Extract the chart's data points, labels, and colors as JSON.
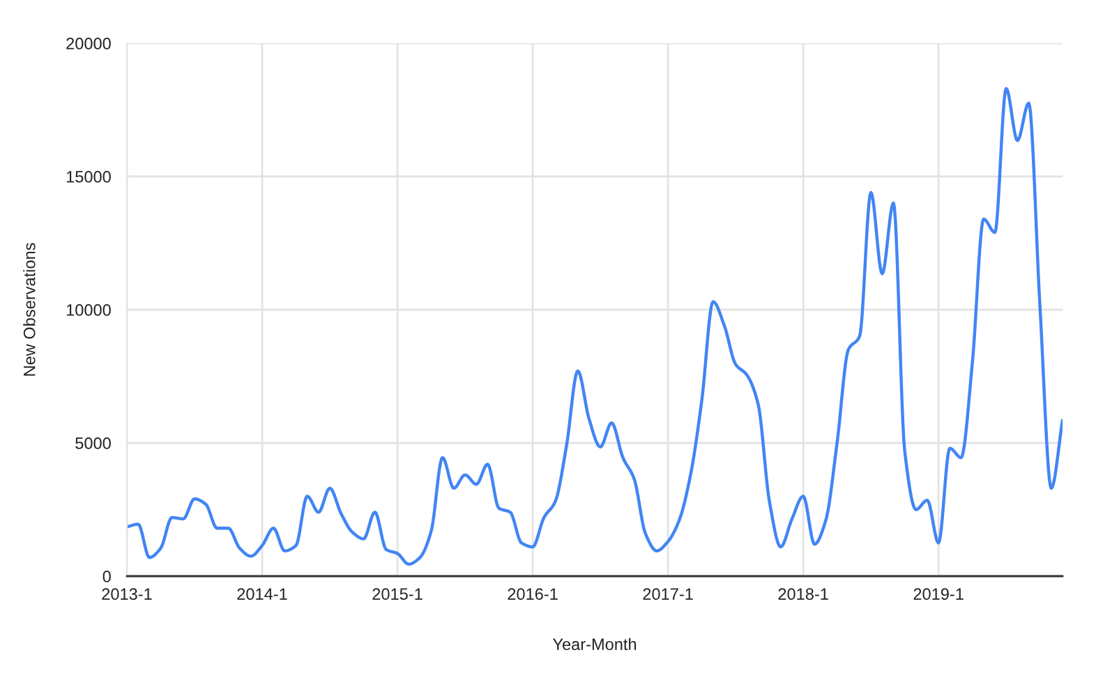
{
  "chart_data": {
    "type": "line",
    "xlabel": "Year-Month",
    "ylabel": "New Observations",
    "categories": [
      "2013-1",
      null,
      null,
      null,
      null,
      null,
      null,
      null,
      null,
      null,
      null,
      null,
      "2014-1",
      null,
      null,
      null,
      null,
      null,
      null,
      null,
      null,
      null,
      null,
      null,
      "2015-1",
      null,
      null,
      null,
      null,
      null,
      null,
      null,
      null,
      null,
      null,
      null,
      "2016-1",
      null,
      null,
      null,
      null,
      null,
      null,
      null,
      null,
      null,
      null,
      null,
      "2017-1",
      null,
      null,
      null,
      null,
      null,
      null,
      null,
      null,
      null,
      null,
      null,
      "2018-1",
      null,
      null,
      null,
      null,
      null,
      null,
      null,
      null,
      null,
      null,
      null,
      "2019-1",
      null,
      null,
      null,
      null,
      null,
      null,
      null,
      null,
      null,
      null,
      null
    ],
    "series": [
      {
        "color": "#4285f4",
        "values": [
          1850,
          1950,
          700,
          1050,
          2200,
          2150,
          2900,
          2700,
          1800,
          1800,
          1050,
          750,
          1150,
          1800,
          950,
          1150,
          3000,
          2400,
          3300,
          2350,
          1650,
          1400,
          2400,
          1000,
          850,
          450,
          700,
          1700,
          4450,
          3300,
          3800,
          3450,
          4200,
          2550,
          2400,
          1250,
          1100,
          2200,
          2800,
          4900,
          7700,
          5900,
          4850,
          5750,
          4450,
          3650,
          1600,
          950,
          1300,
          2100,
          3800,
          6600,
          10300,
          9400,
          7950,
          7550,
          6450,
          2800,
          1100,
          2150,
          3000,
          1200,
          2100,
          5000,
          8500,
          9000,
          14400,
          11350,
          14000,
          4700,
          2500,
          2850,
          1250,
          4800,
          4450,
          8000,
          13400,
          12900,
          18300,
          16350,
          17750,
          10100,
          3300,
          5850
        ]
      }
    ],
    "ylim": [
      0,
      20000
    ],
    "yticks": [
      0,
      5000,
      10000,
      15000,
      20000
    ],
    "grid": true,
    "line_style": "solid"
  }
}
